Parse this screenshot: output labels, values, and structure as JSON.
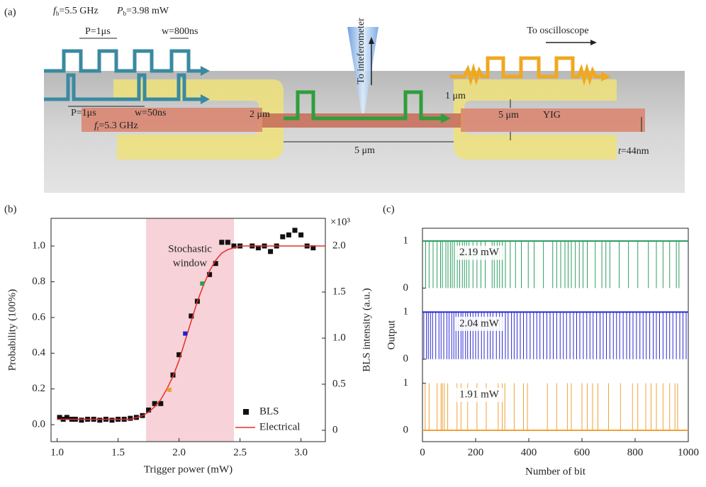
{
  "panel_labels": [
    "(a)",
    "(b)",
    "(c)"
  ],
  "diagram": {
    "bias": [
      {
        "text": "f",
        "sub": "b",
        "rest": "=5.5 GHz"
      },
      {
        "text": "P",
        "sub": "b",
        "rest": "=3.98 mW"
      }
    ],
    "trigger": {
      "text": "f",
      "sub": "t",
      "rest": "=5.3 GHz"
    },
    "thickness": {
      "text": "t",
      "rest": "=44nm"
    },
    "labels": [
      "P=1μs",
      "w=800ns",
      "P=1μs",
      "w=50ns",
      "To inteferometer",
      "To oscilloscope",
      "2 μm",
      "1 μm",
      "5 μm",
      "YIG",
      "5 μm"
    ]
  },
  "chart_data": [
    {
      "type": "scatter",
      "x_label": "Trigger power (mW)",
      "y_label": "Probability (100%)",
      "y2_label": "BLS intensity  (a.u.)",
      "y2_multiplier": "×10³",
      "xlim": [
        0.95,
        3.2
      ],
      "xticks": [
        {
          "value": 1,
          "label": "1.0"
        },
        1.5,
        {
          "value": 2,
          "label": "2.0"
        },
        2.5,
        {
          "value": 3,
          "label": "3.0"
        }
      ],
      "ylim": [
        -0.095,
        1.155
      ],
      "yticks": [
        {
          "value": 0,
          "label": "0.0"
        },
        0.2,
        0.4,
        0.6,
        0.8,
        {
          "value": 1,
          "label": "1.0"
        }
      ],
      "y2lim": [
        -0.123,
        2.3
      ],
      "y2ticks": [
        0,
        0.5,
        {
          "value": 1,
          "label": "1.0"
        },
        1.5,
        {
          "value": 2,
          "label": "2.0"
        }
      ],
      "window": {
        "xrange": [
          1.73,
          2.45
        ],
        "color": "#f7d2d8",
        "label_lines": [
          "Stochastic",
          "window"
        ]
      },
      "legend": "lower right",
      "series": [
        {
          "name": "BLS",
          "color": "#111111",
          "axis": "y2",
          "marker": "square",
          "x": [
            1.02,
            1.05,
            1.08,
            1.12,
            1.15,
            1.2,
            1.25,
            1.3,
            1.35,
            1.4,
            1.45,
            1.5,
            1.55,
            1.6,
            1.65,
            1.7,
            1.75,
            1.8,
            1.85,
            1.95,
            2.0,
            2.1,
            2.15,
            2.25,
            2.3,
            2.35,
            2.4,
            2.45,
            2.5,
            2.6,
            2.65,
            2.7,
            2.75,
            2.8,
            2.85,
            2.9,
            2.95,
            3.0,
            3.05,
            3.1
          ],
          "values": [
            0.14,
            0.12,
            0.14,
            0.12,
            0.12,
            0.11,
            0.12,
            0.12,
            0.11,
            0.12,
            0.11,
            0.12,
            0.12,
            0.13,
            0.14,
            0.16,
            0.22,
            0.29,
            0.29,
            0.6,
            0.82,
            1.24,
            1.4,
            1.69,
            1.81,
            2.04,
            2.04,
            2.0,
            2.0,
            2.0,
            1.98,
            2.0,
            1.94,
            2.0,
            2.1,
            2.12,
            2.17,
            2.12,
            2.0,
            1.98
          ]
        },
        {
          "name": "Electrical",
          "color": "#e0302c",
          "marker": "line",
          "x": [
            1.0,
            1.1,
            1.2,
            1.3,
            1.4,
            1.5,
            1.6,
            1.7,
            1.75,
            1.8,
            1.85,
            1.9,
            1.95,
            2.0,
            2.05,
            2.1,
            2.15,
            2.2,
            2.25,
            2.3,
            2.35,
            2.4,
            2.5,
            2.6,
            2.8,
            3.0,
            3.2
          ],
          "values": [
            0.03,
            0.03,
            0.03,
            0.03,
            0.03,
            0.03,
            0.03,
            0.05,
            0.07,
            0.1,
            0.14,
            0.2,
            0.27,
            0.36,
            0.47,
            0.58,
            0.69,
            0.78,
            0.86,
            0.92,
            0.96,
            0.98,
            1.0,
            1.0,
            1.0,
            1.0,
            1.0
          ]
        }
      ],
      "highlights": {
        "x": [
          1.92,
          2.05,
          2.19
        ],
        "values": [
          0.195,
          0.51,
          0.79
        ],
        "colors": [
          "#f0a030",
          "#2020d0",
          "#30a050"
        ]
      }
    },
    {
      "type": "telegraph",
      "x_label": "Number of bit",
      "y_label": "Output",
      "xlim": [
        0,
        1000
      ],
      "xticks": [
        0,
        200,
        400,
        600,
        800,
        1000
      ],
      "ylim": [
        -0.24,
        1.27
      ],
      "yticks": [
        0,
        1
      ],
      "series": [
        {
          "name": "2.19 mW",
          "color": "#2e9e62",
          "baseline": 1,
          "x": [
            12,
            25,
            40,
            55,
            68,
            75,
            88,
            96,
            105,
            112,
            120,
            131,
            140,
            150,
            158,
            166,
            175,
            190,
            205,
            220,
            236,
            262,
            270,
            281,
            290,
            300,
            312,
            330,
            350,
            372,
            398,
            420,
            455,
            490,
            505,
            520,
            536,
            548,
            560,
            575,
            590,
            604,
            620,
            650,
            675,
            690,
            705,
            740,
            775,
            810,
            850,
            880,
            905,
            930,
            955,
            965
          ],
          "values": [
            0,
            0,
            0,
            0,
            0,
            0,
            0,
            0,
            0,
            0,
            0,
            0,
            0,
            0,
            0,
            0,
            0,
            0,
            0,
            0,
            0,
            0,
            0,
            0,
            0,
            0,
            0,
            0,
            0,
            0,
            0,
            0,
            0,
            0,
            0,
            0,
            0,
            0,
            0,
            0,
            0,
            0,
            0,
            0,
            0,
            0,
            0,
            0,
            0,
            0,
            0,
            0,
            0,
            0,
            0,
            0
          ]
        },
        {
          "name": "2.04 mW",
          "color": "#2a2ad0",
          "baseline": 1,
          "x": [
            5,
            15,
            22,
            30,
            38,
            50,
            62,
            70,
            80,
            92,
            100,
            110,
            118,
            126,
            135,
            145,
            152,
            162,
            170,
            180,
            190,
            200,
            210,
            222,
            232,
            245,
            255,
            265,
            278,
            290,
            300,
            312,
            322,
            335,
            345,
            356,
            368,
            380,
            392,
            405,
            418,
            430,
            442,
            455,
            468,
            480,
            492,
            505,
            518,
            530,
            542,
            555,
            568,
            580,
            592,
            605,
            618,
            630,
            642,
            655,
            668,
            680,
            692,
            705,
            718,
            730,
            742,
            755,
            768,
            780,
            792,
            805,
            818,
            830,
            842,
            855,
            868,
            880,
            892,
            905,
            918,
            930,
            942,
            955,
            968,
            980,
            992
          ],
          "values": [
            0,
            0,
            0,
            0,
            0,
            0,
            0,
            0,
            0,
            0,
            0,
            0,
            0,
            0,
            0,
            0,
            0,
            0,
            0,
            0,
            0,
            0,
            0,
            0,
            0,
            0,
            0,
            0,
            0,
            0,
            0,
            0,
            0,
            0,
            0,
            0,
            0,
            0,
            0,
            0,
            0,
            0,
            0,
            0,
            0,
            0,
            0,
            0,
            0,
            0,
            0,
            0,
            0,
            0,
            0,
            0,
            0,
            0,
            0,
            0,
            0,
            0,
            0,
            0,
            0,
            0,
            0,
            0,
            0,
            0,
            0,
            0,
            0,
            0,
            0,
            0,
            0,
            0,
            0,
            0,
            0,
            0,
            0,
            0,
            0,
            0,
            0
          ]
        },
        {
          "name": "1.91 mW",
          "color": "#f0a23a",
          "baseline": 0,
          "x": [
            10,
            25,
            55,
            70,
            75,
            82,
            95,
            130,
            145,
            170,
            205,
            240,
            285,
            300,
            310,
            345,
            380,
            395,
            470,
            505,
            545,
            560,
            600,
            620,
            640,
            660,
            700,
            745,
            790,
            810,
            840,
            860,
            880,
            905,
            930,
            950,
            960
          ],
          "values": [
            1,
            1,
            1,
            1,
            1,
            1,
            1,
            1,
            1,
            1,
            1,
            1,
            1,
            1,
            1,
            1,
            1,
            1,
            1,
            1,
            1,
            1,
            1,
            1,
            1,
            1,
            1,
            1,
            1,
            1,
            1,
            1,
            1,
            1,
            1,
            1,
            1
          ]
        }
      ]
    }
  ]
}
